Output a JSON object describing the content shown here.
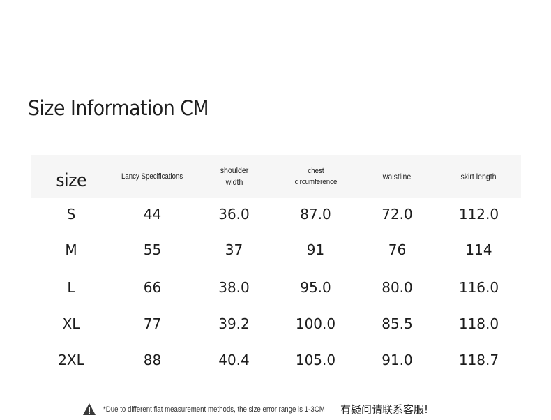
{
  "title": "Size Information CM",
  "table": {
    "headers": [
      "size",
      "Lancy Specifications",
      "shoulder width",
      "chest circumference",
      "waistline",
      "skirt length"
    ],
    "rows": [
      [
        "S",
        "44",
        "36.0",
        "87.0",
        "72.0",
        "112.0"
      ],
      [
        "M",
        "55",
        "37",
        "91",
        "76",
        "114"
      ],
      [
        "L",
        "66",
        "38.0",
        "95.0",
        "80.0",
        "116.0"
      ],
      [
        "XL",
        "77",
        "39.2",
        "100.0",
        "85.5",
        "118.0"
      ],
      [
        "2XL",
        "88",
        "40.4",
        "105.0",
        "91.0",
        "118.7"
      ]
    ]
  },
  "footer": {
    "icon": "warning-icon",
    "note": "*Due to different flat measurement methods, the size error range is 1-3CM",
    "note_cn": "有疑问请联系客服!"
  }
}
